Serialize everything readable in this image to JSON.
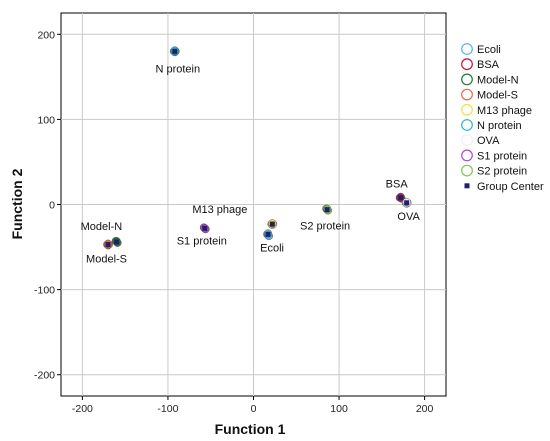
{
  "chart_data": {
    "type": "scatter",
    "xlabel": "Function 1",
    "ylabel": "Function 2",
    "xlim": [
      -225,
      225
    ],
    "ylim": [
      -225,
      225
    ],
    "xticks": [
      -200,
      -100,
      0,
      100,
      200
    ],
    "yticks": [
      -200,
      -100,
      0,
      100,
      200
    ],
    "grid": true,
    "legend_position": "right",
    "series": [
      {
        "name": "Ecoli",
        "color": "#4FB4E0",
        "points": [
          [
            16,
            -35
          ],
          [
            17,
            -36
          ],
          [
            18,
            -37
          ],
          [
            17,
            -34
          ]
        ]
      },
      {
        "name": "BSA",
        "color": "#C8103C",
        "points": [
          [
            171,
            8
          ],
          [
            172,
            9
          ],
          [
            173,
            7
          ],
          [
            172,
            8
          ]
        ]
      },
      {
        "name": "Model-N",
        "color": "#1E7B34",
        "points": [
          [
            -161,
            -43
          ],
          [
            -160,
            -44
          ],
          [
            -159,
            -45
          ],
          [
            -160,
            -43
          ]
        ]
      },
      {
        "name": "Model-S",
        "color": "#E86A4C",
        "points": [
          [
            -171,
            -47
          ],
          [
            -170,
            -48
          ],
          [
            -169,
            -47
          ],
          [
            -170,
            -46
          ]
        ]
      },
      {
        "name": "M13 phage",
        "color": "#F0E040",
        "points": [
          [
            21,
            -23
          ],
          [
            22,
            -24
          ],
          [
            23,
            -23
          ],
          [
            22,
            -22
          ]
        ]
      },
      {
        "name": "N protein",
        "color": "#1ABCC8",
        "points": [
          [
            -93,
            180
          ],
          [
            -92,
            179
          ],
          [
            -91,
            180
          ],
          [
            -92,
            181
          ]
        ]
      },
      {
        "name": "OVA",
        "color": "#F2EEF8",
        "points": [
          [
            178,
            2
          ],
          [
            179,
            1
          ],
          [
            180,
            2
          ],
          [
            179,
            3
          ]
        ]
      },
      {
        "name": "S1 protein",
        "color": "#C040D8",
        "points": [
          [
            -58,
            -27
          ],
          [
            -57,
            -28
          ],
          [
            -56,
            -29
          ],
          [
            -57,
            -28
          ]
        ]
      },
      {
        "name": "S2 protein",
        "color": "#7CC84C",
        "points": [
          [
            85,
            -5
          ],
          [
            86,
            -6
          ],
          [
            87,
            -7
          ],
          [
            86,
            -5
          ]
        ]
      }
    ],
    "group_centers": {
      "name": "Group Center",
      "color": "#1F1F6B",
      "points": [
        {
          "label": "Ecoli",
          "x": 17,
          "y": -35
        },
        {
          "label": "BSA",
          "x": 172,
          "y": 8
        },
        {
          "label": "Model-N",
          "x": -160,
          "y": -44
        },
        {
          "label": "Model-S",
          "x": -170,
          "y": -47
        },
        {
          "label": "M13 phage",
          "x": 22,
          "y": -23
        },
        {
          "label": "N protein",
          "x": -92,
          "y": 180
        },
        {
          "label": "OVA",
          "x": 179,
          "y": 2
        },
        {
          "label": "S1 protein",
          "x": -57,
          "y": -28
        },
        {
          "label": "S2 protein",
          "x": 86,
          "y": -6
        }
      ]
    }
  }
}
